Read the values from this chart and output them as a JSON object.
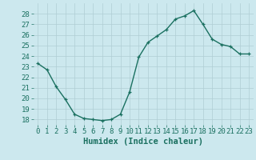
{
  "x": [
    0,
    1,
    2,
    3,
    4,
    5,
    6,
    7,
    8,
    9,
    10,
    11,
    12,
    13,
    14,
    15,
    16,
    17,
    18,
    19,
    20,
    21,
    22,
    23
  ],
  "y": [
    23.3,
    22.7,
    21.1,
    19.9,
    18.5,
    18.1,
    18.0,
    17.9,
    18.0,
    18.5,
    20.6,
    23.9,
    25.3,
    25.9,
    26.5,
    27.5,
    27.8,
    28.3,
    27.0,
    25.6,
    25.1,
    24.9,
    24.2,
    24.2
  ],
  "xlabel": "Humidex (Indice chaleur)",
  "ylim": [
    17.5,
    29.0
  ],
  "xlim": [
    -0.5,
    23.5
  ],
  "yticks": [
    18,
    19,
    20,
    21,
    22,
    23,
    24,
    25,
    26,
    27,
    28
  ],
  "xticks": [
    0,
    1,
    2,
    3,
    4,
    5,
    6,
    7,
    8,
    9,
    10,
    11,
    12,
    13,
    14,
    15,
    16,
    17,
    18,
    19,
    20,
    21,
    22,
    23
  ],
  "line_color": "#1a7060",
  "marker": "+",
  "marker_color": "#1a7060",
  "bg_color": "#cce8ee",
  "grid_color": "#b0cdd4",
  "xlabel_fontsize": 7.5,
  "tick_fontsize": 6.5,
  "marker_size": 3.5,
  "line_width": 1.0
}
